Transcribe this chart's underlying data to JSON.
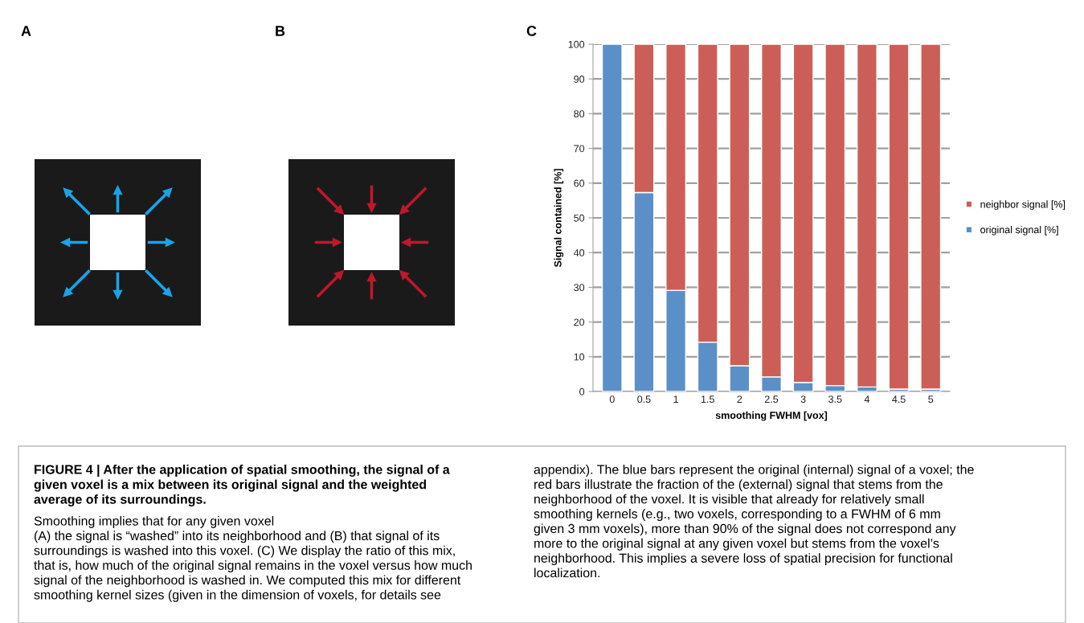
{
  "chart_data": {
    "type": "bar",
    "stacked": true,
    "xlabel": "smoothing FWHM [vox]",
    "ylabel": "Signal contained [%]",
    "categories": [
      "0",
      "0.5",
      "1",
      "1.5",
      "2",
      "2.5",
      "3",
      "3.5",
      "4",
      "4.5",
      "5"
    ],
    "series": [
      {
        "name": "original signal [%]",
        "color": "#5b8fc7",
        "values": [
          100,
          57.3,
          29.1,
          14.2,
          7.4,
          4.2,
          2.6,
          1.7,
          1.3,
          0.7,
          0.7
        ]
      },
      {
        "name": "neighbor signal [%]",
        "color": "#cb5f58",
        "values": [
          0,
          42.7,
          70.9,
          85.8,
          92.6,
          95.8,
          97.4,
          98.3,
          98.7,
          99.3,
          99.3
        ]
      }
    ],
    "ylim": [
      0,
      100
    ],
    "yticks": [
      0,
      10,
      20,
      30,
      40,
      50,
      60,
      70,
      80,
      90,
      100
    ],
    "grid": "y",
    "legend": "right",
    "annotations": [
      "A",
      "B",
      "C",
      "FIGURE 4 | After the application of spatial smoothing, the signal of a\ngiven voxel is a mix between its original signal and the weighted\naverage of its surroundings.",
      "Smoothing implies that for any given voxel\n(A) the signal is “washed” into its neighborhood and (B) that signal of its\nsurroundings is washed into this voxel. (C) We display the ratio of this mix,\nthat is, how much of the original signal remains in the voxel versus how much\nsignal of the neighborhood is washed in. We computed this mix for different\nsmoothing kernel sizes (given in the dimension of voxels, for details see",
      "appendix). The blue bars represent the original (internal) signal of a voxel; the\nred bars illustrate the fraction of the (external) signal that stems from the\nneighborhood of the voxel. It is visible that already for relatively small\nsmoothing kernels (e.g., two voxels, corresponding to a FWHM of 6 mm\ngiven 3 mm voxels), more than 90% of the signal does not correspond any\nmore to the original signal at any given voxel but stems from the voxel’s\nneighborhood. This implies a severe loss of spatial precision for functional\nlocalization."
    ]
  }
}
